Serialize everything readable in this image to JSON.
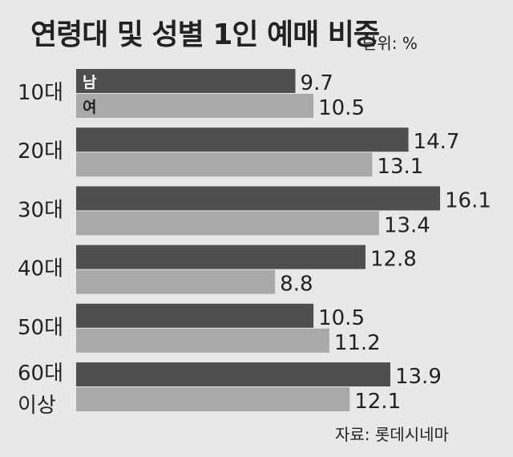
{
  "title": "연령대 및 성별 1인 예매 비중",
  "unit": "단위: %",
  "source": "자료: 롯데시네마",
  "colors": {
    "male": "#4f4f4f",
    "female": "#a9a9a9",
    "background": "#e8e8e8",
    "text": "#222222"
  },
  "chart_data": {
    "type": "bar",
    "orientation": "horizontal",
    "categories": [
      [
        "10대"
      ],
      [
        "20대"
      ],
      [
        "30대"
      ],
      [
        "40대"
      ],
      [
        "50대"
      ],
      [
        "60대",
        "이상"
      ]
    ],
    "series": [
      {
        "name": "남",
        "values": [
          9.7,
          14.7,
          16.1,
          12.8,
          10.5,
          13.9
        ]
      },
      {
        "name": "여",
        "values": [
          10.5,
          13.1,
          13.4,
          8.8,
          11.2,
          12.1
        ]
      }
    ],
    "value_labels": [
      [
        "9.7",
        "14.7",
        "16.1",
        "12.8",
        "10.5",
        "13.9"
      ],
      [
        "10.5",
        "13.1",
        "13.4",
        "8.8",
        "11.2",
        "12.1"
      ]
    ],
    "xlim": [
      0,
      16.1
    ],
    "legend": "inside-first-bars"
  }
}
